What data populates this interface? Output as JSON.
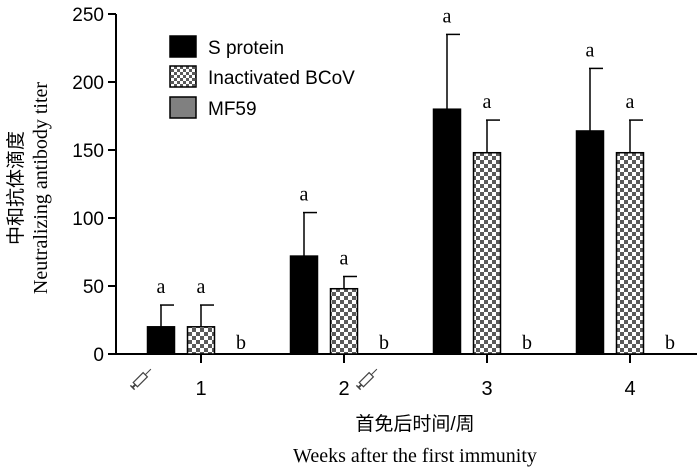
{
  "chart_data": {
    "type": "bar",
    "categories": [
      "1",
      "2",
      "3",
      "4"
    ],
    "series": [
      {
        "name": "S protein",
        "values": [
          20,
          72,
          180,
          164
        ],
        "errors": [
          16,
          32,
          55,
          46
        ],
        "letters": [
          "a",
          "a",
          "a",
          "a"
        ],
        "fill": "solid",
        "color": "#000000"
      },
      {
        "name": "Inactivated BCoV",
        "values": [
          20,
          48,
          148,
          148
        ],
        "errors": [
          16,
          9,
          24,
          24
        ],
        "letters": [
          "a",
          "a",
          "a",
          "a"
        ],
        "fill": "checker",
        "color": "#555555"
      },
      {
        "name": "MF59",
        "values": [
          0,
          0,
          0,
          0
        ],
        "errors": [
          0,
          0,
          0,
          0
        ],
        "letters": [
          "b",
          "b",
          "b",
          "b"
        ],
        "fill": "gray",
        "color": "#808080"
      }
    ],
    "ylim": [
      0,
      250
    ],
    "yticks": [
      0,
      50,
      100,
      150,
      200,
      250
    ],
    "ylabel_zh": "中和抗体滴度",
    "ylabel_en": "Neutralizing antibody titer",
    "xlabel_zh": "首免后时间/周",
    "xlabel_en": "Weeks after the first immunity",
    "legend_position": "top-left",
    "grid": false,
    "injection_markers": [
      "before week 1",
      "after week 2"
    ],
    "injection_icon": "syringe-icon"
  }
}
